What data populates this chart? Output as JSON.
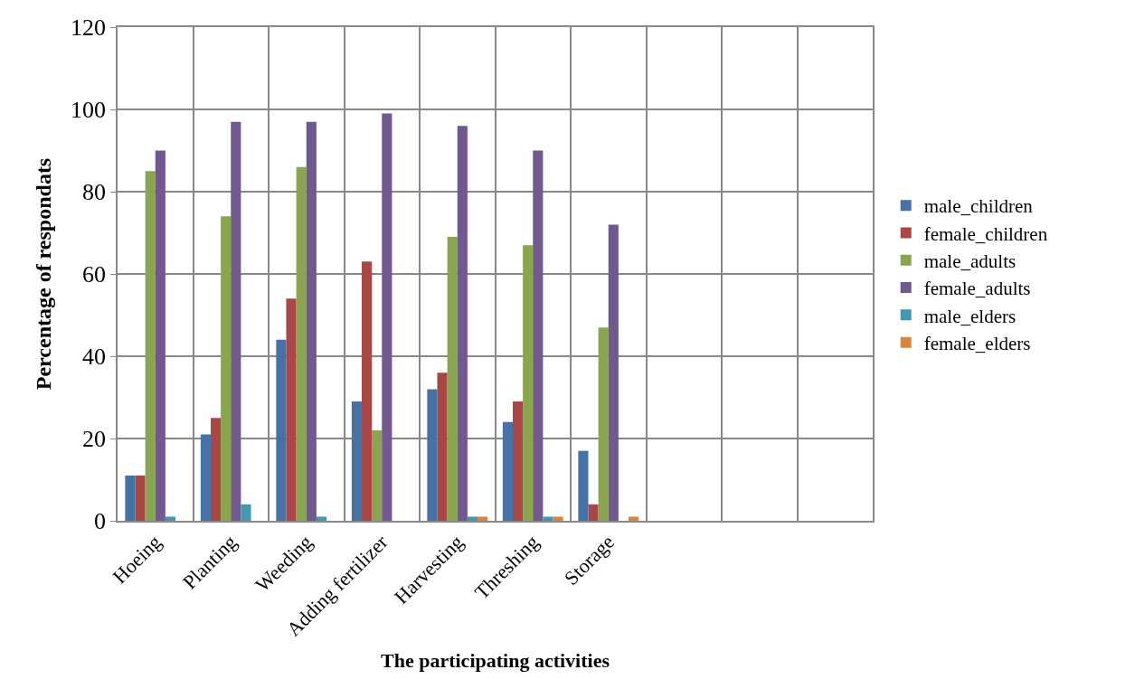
{
  "chart_data": {
    "type": "bar",
    "xlabel": "The participating activities",
    "ylabel": "Percentage of respondats",
    "categories": [
      "Hoeing",
      "Planting",
      "Weeding",
      "Adding fertilizer",
      "Harvesting",
      "Threshing",
      "Storage",
      null,
      null,
      null
    ],
    "series": [
      {
        "name": "male_children",
        "color": "#4572a7",
        "values": [
          11,
          21,
          44,
          29,
          32,
          24,
          17,
          null,
          null,
          null
        ]
      },
      {
        "name": "female_children",
        "color": "#aa4643",
        "values": [
          11,
          25,
          54,
          63,
          36,
          29,
          4,
          null,
          null,
          null
        ]
      },
      {
        "name": "male_adults",
        "color": "#89a54e",
        "values": [
          85,
          74,
          86,
          22,
          69,
          67,
          47,
          null,
          null,
          null
        ]
      },
      {
        "name": "female_adults",
        "color": "#71588f",
        "values": [
          90,
          97,
          97,
          99,
          96,
          90,
          72,
          null,
          null,
          null
        ]
      },
      {
        "name": "male_elders",
        "color": "#4198af",
        "values": [
          1,
          4,
          1,
          0,
          1,
          1,
          0,
          null,
          null,
          null
        ]
      },
      {
        "name": "female_elders",
        "color": "#db843d",
        "values": [
          0,
          0,
          0,
          0,
          1,
          1,
          1,
          null,
          null,
          null
        ]
      }
    ],
    "ylim": [
      0,
      120
    ],
    "yticks": [
      0,
      20,
      40,
      60,
      80,
      100,
      120
    ],
    "grid": true,
    "legend": "right"
  }
}
